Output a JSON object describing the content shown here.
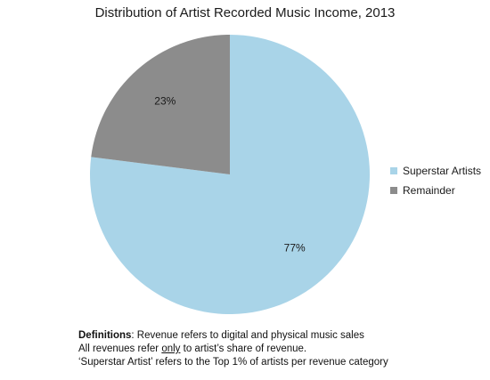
{
  "chart_data": {
    "type": "pie",
    "title": "Distribution of Artist Recorded Music Income, 2013",
    "categories": [
      "Superstar Artists",
      "Remainder"
    ],
    "values": [
      77,
      23
    ],
    "data_labels": [
      "77%",
      "23%"
    ],
    "colors": [
      "#a9d4e8",
      "#8c8c8c"
    ],
    "legend_position": "right"
  },
  "definitions": {
    "heading": "Definitions",
    "line1_rest": ": Revenue refers to digital and physical music sales",
    "line2_pre": "All revenues refer ",
    "line2_emph": "only",
    "line2_post": " to artist’s share of revenue.",
    "line3": "‘Superstar Artist’ refers to the Top 1% of artists per revenue category"
  }
}
